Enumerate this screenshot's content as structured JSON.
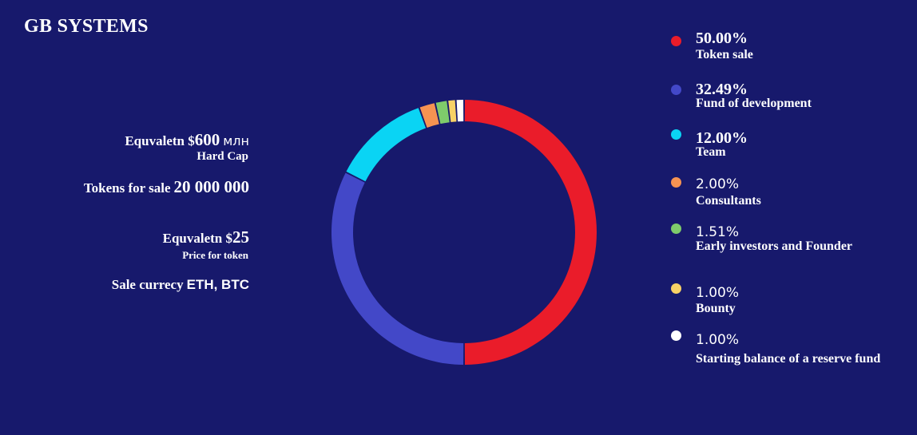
{
  "brand": "GB SYSTEMS",
  "info": {
    "hard_cap_prefix": "Equvaletn $",
    "hard_cap_value": "600",
    "hard_cap_unit": "млн",
    "hard_cap_label": "Hard Cap",
    "tokens_label": "Tokens for sale",
    "tokens_value": "20 000 000",
    "price_prefix": "Equvaletn $",
    "price_value": "25",
    "price_label": "Price for token",
    "currency_label": "Sale currecy",
    "currency_value": "ETH, BTC"
  },
  "chart_data": {
    "type": "pie",
    "donut": true,
    "title": "",
    "series": [
      {
        "name": "Token sale",
        "label": "50.00%",
        "value": 50.0,
        "color": "#ea1c2a"
      },
      {
        "name": "Fund of development",
        "label": "32.49%",
        "value": 32.49,
        "color": "#4348c8"
      },
      {
        "name": "Team",
        "label": "12.00%",
        "value": 12.0,
        "color": "#0ad4f4"
      },
      {
        "name": "Consultants",
        "label": "2.00%",
        "value": 2.0,
        "color": "#f69352"
      },
      {
        "name": "Early investors and Founder",
        "label": "1.51%",
        "value": 1.51,
        "color": "#7fcb6b"
      },
      {
        "name": "Bounty",
        "label": "1.00%",
        "value": 1.0,
        "color": "#f8d266"
      },
      {
        "name": "Starting balance of a reserve fund",
        "label": "1.00%",
        "value": 1.0,
        "color": "#ffffff"
      }
    ],
    "legend_position": "right"
  }
}
